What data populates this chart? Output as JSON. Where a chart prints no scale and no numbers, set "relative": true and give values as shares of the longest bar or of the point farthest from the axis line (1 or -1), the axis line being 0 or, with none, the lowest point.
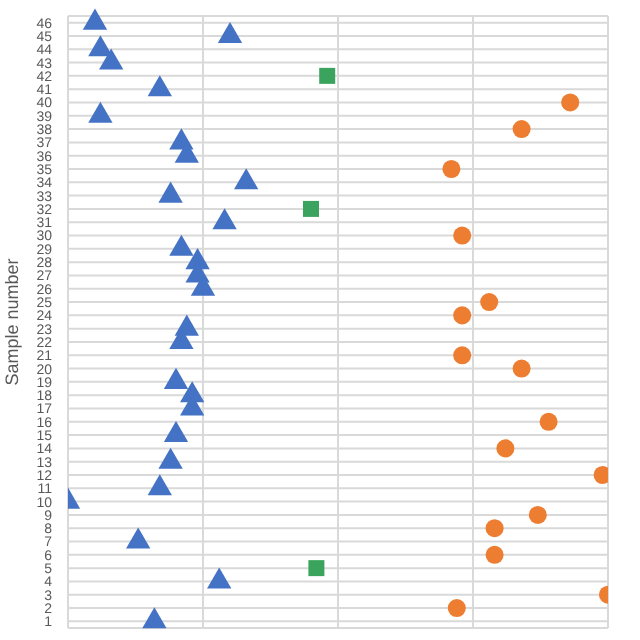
{
  "chart_data": {
    "type": "scatter",
    "orientation": "horizontal",
    "relative": true,
    "ylabel": "Sample number",
    "grid": true,
    "legend": false,
    "categories": [
      "46",
      "45",
      "44",
      "43",
      "42",
      "41",
      "40",
      "39",
      "38",
      "37",
      "36",
      "35",
      "34",
      "33",
      "32",
      "31",
      "30",
      "29",
      "28",
      "27",
      "26",
      "25",
      "24",
      "23",
      "22",
      "21",
      "20",
      "19",
      "18",
      "17",
      "16",
      "15",
      "14",
      "13",
      "12",
      "11",
      "10",
      "9",
      "8",
      "7",
      "6",
      "5",
      "4",
      "3",
      "2",
      "1"
    ],
    "series": [
      {
        "color": "#4472c4",
        "marker": "triangle",
        "values": [
          0.05,
          0.3,
          0.06,
          0.08,
          null,
          0.17,
          null,
          0.06,
          null,
          0.21,
          0.22,
          null,
          0.33,
          0.19,
          null,
          0.29,
          null,
          0.21,
          0.24,
          0.24,
          0.25,
          null,
          null,
          0.22,
          0.21,
          null,
          null,
          0.2,
          0.23,
          0.23,
          null,
          0.2,
          null,
          0.19,
          null,
          0.17,
          0,
          null,
          null,
          0.13,
          null,
          null,
          0.28,
          null,
          null,
          0.16
        ]
      },
      {
        "color": "#3aa35e",
        "marker": "square",
        "values": [
          null,
          null,
          null,
          null,
          0.48,
          null,
          null,
          null,
          null,
          null,
          null,
          null,
          null,
          null,
          0.45,
          null,
          null,
          null,
          null,
          null,
          null,
          null,
          null,
          null,
          null,
          null,
          null,
          null,
          null,
          null,
          null,
          null,
          null,
          null,
          null,
          null,
          null,
          null,
          null,
          null,
          null,
          0.46,
          null,
          null,
          null,
          null
        ]
      },
      {
        "color": "#ed7d31",
        "marker": "circle",
        "values": [
          null,
          null,
          null,
          null,
          null,
          null,
          0.93,
          null,
          0.84,
          null,
          null,
          0.71,
          null,
          null,
          null,
          null,
          0.73,
          null,
          null,
          null,
          null,
          0.78,
          0.73,
          null,
          null,
          0.73,
          0.84,
          null,
          null,
          null,
          0.89,
          null,
          0.81,
          null,
          0.99,
          null,
          null,
          0.87,
          0.79,
          null,
          0.79,
          null,
          null,
          1,
          0.72,
          null
        ]
      }
    ]
  }
}
